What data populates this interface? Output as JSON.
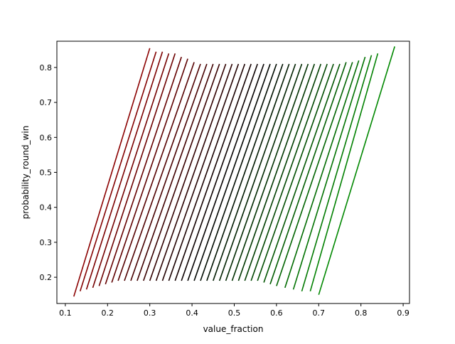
{
  "chart_data": {
    "type": "line",
    "title": "",
    "xlabel": "value_fraction",
    "ylabel": "probability_round_win",
    "xlim": [
      0.08,
      0.915
    ],
    "ylim": [
      0.125,
      0.875
    ],
    "x_ticks": [
      0.1,
      0.2,
      0.3,
      0.4,
      0.5,
      0.6,
      0.7,
      0.8,
      0.9
    ],
    "x_tick_labels": [
      "0.1",
      "0.2",
      "0.3",
      "0.4",
      "0.5",
      "0.6",
      "0.7",
      "0.8",
      "0.9"
    ],
    "y_ticks": [
      0.2,
      0.3,
      0.4,
      0.5,
      0.6,
      0.7,
      0.8
    ],
    "y_tick_labels": [
      "0.2",
      "0.3",
      "0.4",
      "0.5",
      "0.6",
      "0.7",
      "0.8"
    ],
    "grid": false,
    "legend": "none",
    "color_gradient": [
      "#8b0000",
      "#000000",
      "#008800"
    ],
    "series": [
      {
        "x": [
          0.12,
          0.3
        ],
        "y": [
          0.145,
          0.855
        ]
      },
      {
        "x": [
          0.135,
          0.315
        ],
        "y": [
          0.16,
          0.845
        ]
      },
      {
        "x": [
          0.15,
          0.33
        ],
        "y": [
          0.165,
          0.845
        ]
      },
      {
        "x": [
          0.165,
          0.345
        ],
        "y": [
          0.17,
          0.84
        ]
      },
      {
        "x": [
          0.18,
          0.36
        ],
        "y": [
          0.175,
          0.84
        ]
      },
      {
        "x": [
          0.195,
          0.375
        ],
        "y": [
          0.18,
          0.83
        ]
      },
      {
        "x": [
          0.21,
          0.39
        ],
        "y": [
          0.185,
          0.825
        ]
      },
      {
        "x": [
          0.225,
          0.405
        ],
        "y": [
          0.19,
          0.815
        ]
      },
      {
        "x": [
          0.24,
          0.42
        ],
        "y": [
          0.19,
          0.81
        ]
      },
      {
        "x": [
          0.255,
          0.435
        ],
        "y": [
          0.19,
          0.81
        ]
      },
      {
        "x": [
          0.27,
          0.45
        ],
        "y": [
          0.19,
          0.81
        ]
      },
      {
        "x": [
          0.285,
          0.465
        ],
        "y": [
          0.19,
          0.81
        ]
      },
      {
        "x": [
          0.3,
          0.48
        ],
        "y": [
          0.19,
          0.81
        ]
      },
      {
        "x": [
          0.315,
          0.495
        ],
        "y": [
          0.19,
          0.81
        ]
      },
      {
        "x": [
          0.33,
          0.51
        ],
        "y": [
          0.19,
          0.81
        ]
      },
      {
        "x": [
          0.345,
          0.525
        ],
        "y": [
          0.19,
          0.81
        ]
      },
      {
        "x": [
          0.36,
          0.54
        ],
        "y": [
          0.19,
          0.81
        ]
      },
      {
        "x": [
          0.375,
          0.555
        ],
        "y": [
          0.19,
          0.81
        ]
      },
      {
        "x": [
          0.39,
          0.57
        ],
        "y": [
          0.19,
          0.81
        ]
      },
      {
        "x": [
          0.405,
          0.585
        ],
        "y": [
          0.19,
          0.81
        ]
      },
      {
        "x": [
          0.42,
          0.6
        ],
        "y": [
          0.19,
          0.81
        ]
      },
      {
        "x": [
          0.435,
          0.615
        ],
        "y": [
          0.19,
          0.81
        ]
      },
      {
        "x": [
          0.45,
          0.63
        ],
        "y": [
          0.19,
          0.81
        ]
      },
      {
        "x": [
          0.465,
          0.645
        ],
        "y": [
          0.19,
          0.81
        ]
      },
      {
        "x": [
          0.48,
          0.66
        ],
        "y": [
          0.19,
          0.81
        ]
      },
      {
        "x": [
          0.495,
          0.675
        ],
        "y": [
          0.19,
          0.81
        ]
      },
      {
        "x": [
          0.51,
          0.69
        ],
        "y": [
          0.19,
          0.81
        ]
      },
      {
        "x": [
          0.525,
          0.705
        ],
        "y": [
          0.19,
          0.81
        ]
      },
      {
        "x": [
          0.54,
          0.72
        ],
        "y": [
          0.19,
          0.81
        ]
      },
      {
        "x": [
          0.555,
          0.735
        ],
        "y": [
          0.19,
          0.81
        ]
      },
      {
        "x": [
          0.57,
          0.75
        ],
        "y": [
          0.185,
          0.81
        ]
      },
      {
        "x": [
          0.585,
          0.765
        ],
        "y": [
          0.18,
          0.815
        ]
      },
      {
        "x": [
          0.6,
          0.78
        ],
        "y": [
          0.175,
          0.815
        ]
      },
      {
        "x": [
          0.62,
          0.795
        ],
        "y": [
          0.17,
          0.82
        ]
      },
      {
        "x": [
          0.64,
          0.81
        ],
        "y": [
          0.165,
          0.83
        ]
      },
      {
        "x": [
          0.66,
          0.825
        ],
        "y": [
          0.16,
          0.835
        ]
      },
      {
        "x": [
          0.68,
          0.84
        ],
        "y": [
          0.16,
          0.84
        ]
      },
      {
        "x": [
          0.7,
          0.88
        ],
        "y": [
          0.15,
          0.86
        ]
      }
    ]
  }
}
